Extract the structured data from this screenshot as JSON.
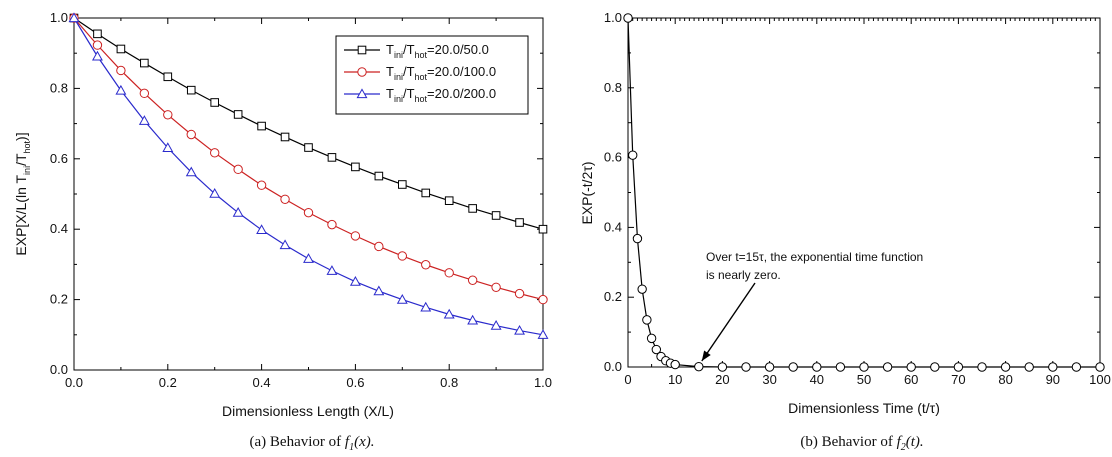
{
  "chart_data": [
    {
      "type": "line",
      "panel": "a",
      "caption_prefix": "(a)  Behavior  of ",
      "caption_fn": "f",
      "caption_sub": "1",
      "caption_arg": "(x).",
      "xlabel": "Dimensionless Length (X/L)",
      "ylabel_parts": [
        "EXP[X/L(ln T",
        "ini",
        "/T",
        "hot",
        ")]"
      ],
      "xlim": [
        0.0,
        1.0
      ],
      "ylim": [
        0.0,
        1.0
      ],
      "xticks": [
        "0.0",
        "0.2",
        "0.4",
        "0.6",
        "0.8",
        "1.0"
      ],
      "yticks": [
        "0.0",
        "0.2",
        "0.4",
        "0.6",
        "0.8",
        "1.0"
      ],
      "grid": false,
      "legend_position": "top-right",
      "x": [
        0.0,
        0.05,
        0.1,
        0.15,
        0.2,
        0.25,
        0.3,
        0.35,
        0.4,
        0.45,
        0.5,
        0.55,
        0.6,
        0.65,
        0.7,
        0.75,
        0.8,
        0.85,
        0.9,
        0.95,
        1.0
      ],
      "series": [
        {
          "legend_parts": [
            "T",
            "ini",
            "/T",
            "hot",
            "=20.0/50.0"
          ],
          "marker": "square",
          "color": "#000000",
          "values": [
            1.0,
            0.955,
            0.912,
            0.872,
            0.833,
            0.795,
            0.76,
            0.726,
            0.693,
            0.662,
            0.632,
            0.604,
            0.577,
            0.551,
            0.527,
            0.503,
            0.481,
            0.459,
            0.439,
            0.419,
            0.4
          ]
        },
        {
          "legend_parts": [
            "T",
            "ini",
            "/T",
            "hot",
            "=20.0/100.0"
          ],
          "marker": "circle",
          "color": "#cc2222",
          "values": [
            1.0,
            0.923,
            0.851,
            0.786,
            0.725,
            0.669,
            0.617,
            0.57,
            0.525,
            0.485,
            0.447,
            0.413,
            0.381,
            0.351,
            0.324,
            0.299,
            0.276,
            0.255,
            0.235,
            0.217,
            0.2
          ]
        },
        {
          "legend_parts": [
            "T",
            "ini",
            "/T",
            "hot",
            "=20.0/200.0"
          ],
          "marker": "triangle",
          "color": "#2a2acc",
          "values": [
            1.0,
            0.891,
            0.794,
            0.708,
            0.631,
            0.562,
            0.501,
            0.447,
            0.398,
            0.355,
            0.316,
            0.282,
            0.251,
            0.224,
            0.2,
            0.178,
            0.158,
            0.141,
            0.126,
            0.112,
            0.1
          ]
        }
      ]
    },
    {
      "type": "line",
      "panel": "b",
      "caption_prefix": "(b)  Behavior  of ",
      "caption_fn": "f",
      "caption_sub": "2",
      "caption_arg": "(t).",
      "xlabel": "Dimensionless Time (t/τ)",
      "ylabel": "EXP(-t/2τ)",
      "xlim": [
        0,
        100
      ],
      "ylim": [
        0.0,
        1.0
      ],
      "xticks": [
        "0",
        "10",
        "20",
        "30",
        "40",
        "50",
        "60",
        "70",
        "80",
        "90",
        "100"
      ],
      "yticks": [
        "0.0",
        "0.2",
        "0.4",
        "0.6",
        "0.8",
        "1.0"
      ],
      "grid": false,
      "x": [
        0,
        1,
        2,
        3,
        4,
        5,
        6,
        7,
        8,
        9,
        10,
        15,
        20,
        25,
        30,
        35,
        40,
        45,
        50,
        55,
        60,
        65,
        70,
        75,
        80,
        85,
        90,
        95,
        100
      ],
      "series": [
        {
          "marker": "circle",
          "color": "#000000",
          "values": [
            1.0,
            0.607,
            0.368,
            0.223,
            0.135,
            0.082,
            0.05,
            0.03,
            0.018,
            0.011,
            0.007,
            0.001,
            0.0,
            0.0,
            0.0,
            0.0,
            0.0,
            0.0,
            0.0,
            0.0,
            0.0,
            0.0,
            0.0,
            0.0,
            0.0,
            0.0,
            0.0,
            0.0,
            0.0
          ]
        }
      ],
      "annotation": {
        "line1": "Over t=15τ, the exponential time function",
        "line2": "is nearly zero.",
        "arrow_to": [
          15,
          0.0
        ]
      }
    }
  ]
}
